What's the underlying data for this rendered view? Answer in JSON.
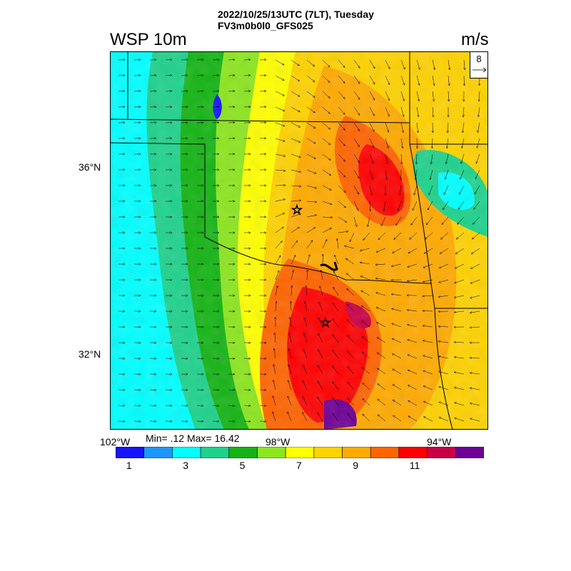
{
  "header": {
    "title_line1": "2022/10/25/13UTC (7LT), Tuesday",
    "title_line2": "FV3m0b0l0_GFS025",
    "variable": "WSP 10m",
    "units": "m/s"
  },
  "map": {
    "lat_labels": [
      "36°N",
      "32°N"
    ],
    "lon_labels": [
      "102°W",
      "98°W",
      "94°W"
    ],
    "min_max_label": "Min= .12 Max= 16.42",
    "reference_vector": "8",
    "markers": [
      "star-marker",
      "star-marker"
    ]
  },
  "colorbar": {
    "colors": [
      "#1414ff",
      "#1e96ff",
      "#00ffff",
      "#1ed28c",
      "#14b414",
      "#8ce61e",
      "#ffff00",
      "#ffd200",
      "#ffaa00",
      "#ff6400",
      "#ff0000",
      "#c80046",
      "#6e0096"
    ],
    "labels": [
      "1",
      "3",
      "5",
      "7",
      "9",
      "11"
    ]
  }
}
